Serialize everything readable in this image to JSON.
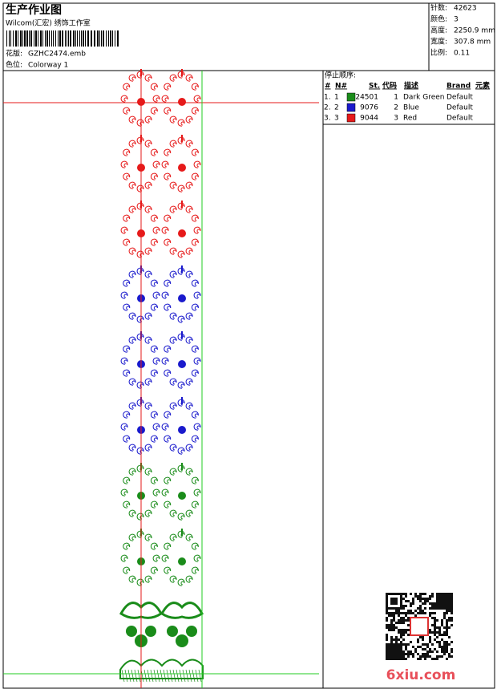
{
  "header": {
    "title": "生产作业图",
    "studio": "Wilcom(汇宏) 绣饰工作室",
    "design_label": "花版:",
    "design_file": "GZHC2474.emb",
    "colorway_label": "色位:",
    "colorway": "Colorway 1"
  },
  "stats": [
    {
      "label": "针数:",
      "value": "42623"
    },
    {
      "label": "颜色:",
      "value": "3"
    },
    {
      "label": "高度:",
      "value": "2250.9 mm"
    },
    {
      "label": "宽度:",
      "value": "307.8 mm"
    },
    {
      "label": "比例:",
      "value": "0.11"
    }
  ],
  "stop_sequence": {
    "title": "停止顺序:",
    "columns": [
      "#",
      "N#",
      "St.",
      "代码",
      "描述",
      "Brand",
      "元素"
    ],
    "rows": [
      {
        "index": "1.",
        "n": "1",
        "color": "#1a8c1a",
        "stitches": "24501",
        "code": "1",
        "description": "Dark Green",
        "brand": "Default"
      },
      {
        "index": "2.",
        "n": "2",
        "color": "#1a1acc",
        "stitches": "9076",
        "code": "2",
        "description": "Blue",
        "brand": "Default"
      },
      {
        "index": "3.",
        "n": "3",
        "color": "#e61a1a",
        "stitches": "9044",
        "code": "3",
        "description": "Red",
        "brand": "Default"
      }
    ]
  },
  "watermark": "6xiu.com"
}
